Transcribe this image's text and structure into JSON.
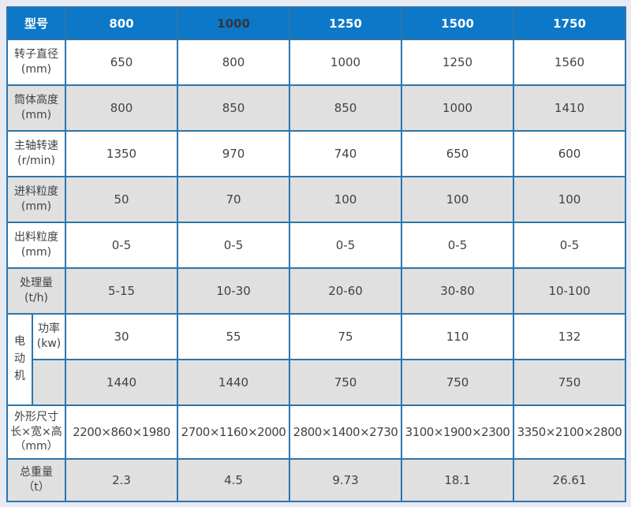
{
  "colors": {
    "header_bg": "#0d78c8",
    "header_text": "#ffffff",
    "header_text_dark": "#33363b",
    "border": "#2e75aa",
    "row_alt_bg": "#e0e0e0",
    "row_bg": "#ffffff",
    "body_text": "#3f4347",
    "page_bg": "#e7eaf4"
  },
  "table": {
    "header": {
      "corner": "型号",
      "models": [
        "800",
        "1000",
        "1250",
        "1500",
        "1750"
      ]
    },
    "rows": [
      {
        "label": "转子直径",
        "unit": "(mm)",
        "values": [
          "650",
          "800",
          "1000",
          "1250",
          "1560"
        ]
      },
      {
        "label": "筒体高度",
        "unit": "(mm)",
        "values": [
          "800",
          "850",
          "850",
          "1000",
          "1410"
        ]
      },
      {
        "label": "主轴转速",
        "unit": "(r/min)",
        "values": [
          "1350",
          "970",
          "740",
          "650",
          "600"
        ]
      },
      {
        "label": "进料粒度",
        "unit": "(mm)",
        "values": [
          "50",
          "70",
          "100",
          "100",
          "100"
        ]
      },
      {
        "label": "出料粒度",
        "unit": "(mm)",
        "values": [
          "0-5",
          "0-5",
          "0-5",
          "0-5",
          "0-5"
        ]
      },
      {
        "label": "处理量",
        "unit": "(t/h)",
        "values": [
          "5-15",
          "10-30",
          "20-60",
          "30-80",
          "10-100"
        ]
      }
    ],
    "motor": {
      "label": "电动机",
      "power": {
        "label": "功率",
        "unit": "(kw)",
        "values": [
          "30",
          "55",
          "75",
          "110",
          "132"
        ]
      },
      "speed": {
        "label": "",
        "values": [
          "1440",
          "1440",
          "750",
          "750",
          "750"
        ]
      }
    },
    "dimensions": {
      "label": "外形尺寸",
      "label2": "长×宽×高",
      "unit": "（mm）",
      "values": [
        "2200×860×1980",
        "2700×1160×2000",
        "2800×1400×2730",
        "3100×1900×2300",
        "3350×2100×2800"
      ]
    },
    "weight": {
      "label": "总重量",
      "unit": "（t）",
      "values": [
        "2.3",
        "4.5",
        "9.73",
        "18.1",
        "26.61"
      ]
    }
  }
}
